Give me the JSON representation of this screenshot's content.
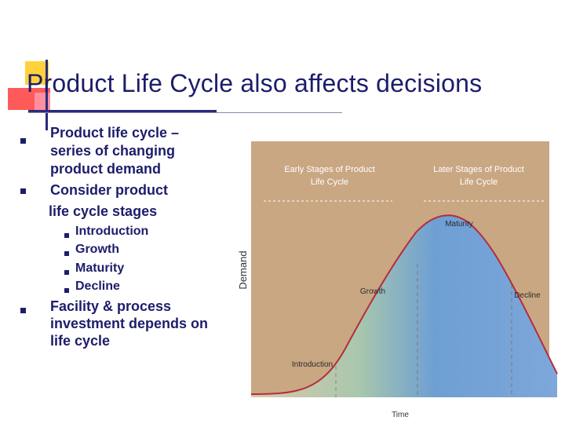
{
  "slide": {
    "title": "Product Life Cycle also affects decisions",
    "bullets": [
      {
        "text_lines": [
          "Product life cycle –",
          "series of changing",
          "product demand"
        ]
      },
      {
        "text_lines": [
          "Consider product",
          "life cycle stages"
        ]
      },
      {
        "text_lines": [
          "Facility & process",
          "investment depends on",
          "life cycle"
        ]
      }
    ],
    "sub_bullets": [
      "Introduction",
      "Growth",
      "Maturity",
      "Decline"
    ]
  },
  "figure": {
    "header_left_lines": [
      "Early Stages of Product",
      "Life Cycle"
    ],
    "header_right_lines": [
      "Later Stages of Product",
      "Life Cycle"
    ],
    "y_axis_label": "Demand",
    "x_axis_label": "Time",
    "stage_labels": {
      "introduction": "Introduction",
      "growth": "Growth",
      "maturity": "Maturity",
      "decline": "Decline"
    }
  },
  "colors": {
    "title": "#1d1d6b",
    "curve": "#b42d3c",
    "panel": "#c9a783"
  }
}
